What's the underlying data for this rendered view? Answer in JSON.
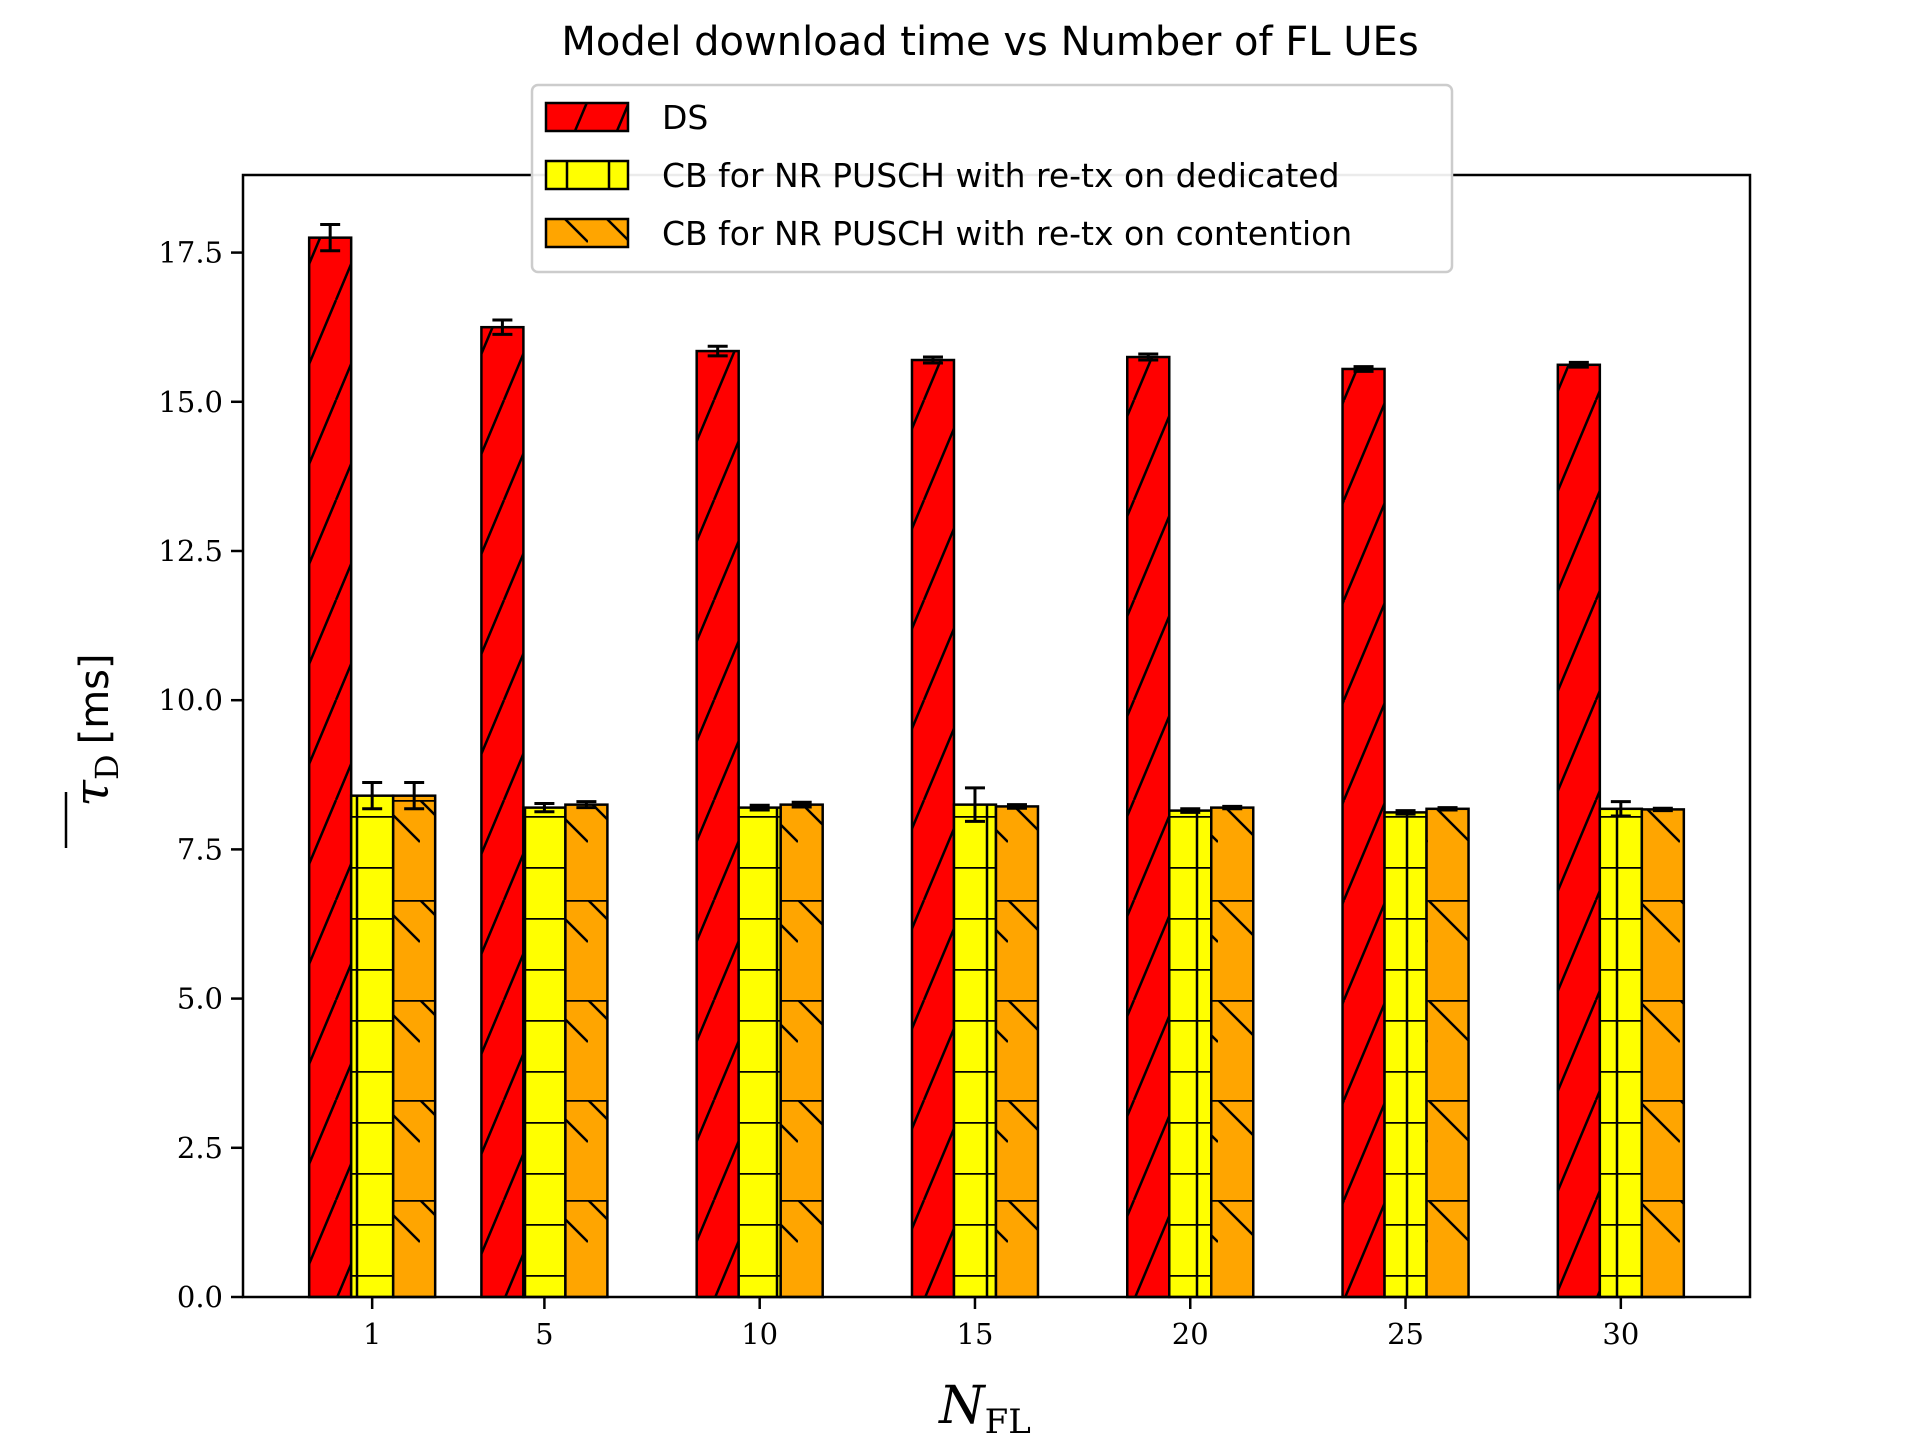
{
  "chart_data": {
    "type": "bar",
    "title": "Model download time vs Number of FL UEs",
    "xlabel": {
      "main": "N",
      "subscript": "FL"
    },
    "ylabel": {
      "symbol": "τ",
      "subscript": "D",
      "unit": "[ms]"
    },
    "categories": [
      "1",
      "5",
      "10",
      "15",
      "20",
      "25",
      "30"
    ],
    "x_positions": [
      1,
      5,
      10,
      15,
      20,
      25,
      30
    ],
    "xlim": [
      -2,
      33
    ],
    "ylim": [
      0,
      18.8
    ],
    "yticks": [
      "0.0",
      "2.5",
      "5.0",
      "7.5",
      "10.0",
      "12.5",
      "15.0",
      "17.5"
    ],
    "ytick_values": [
      0,
      2.5,
      5.0,
      7.5,
      10.0,
      12.5,
      15.0,
      17.5
    ],
    "legend_position": "upper-center",
    "grid": false,
    "series": [
      {
        "name": "DS",
        "color": "#ff0000",
        "hatch": "diagonal",
        "values": [
          17.75,
          16.25,
          15.85,
          15.7,
          15.75,
          15.55,
          15.62
        ],
        "errors": [
          0.22,
          0.12,
          0.08,
          0.05,
          0.05,
          0.04,
          0.04
        ]
      },
      {
        "name": "CB for NR PUSCH with re-tx on dedicated",
        "color": "#ffff00",
        "hatch": "grid",
        "values": [
          8.4,
          8.2,
          8.2,
          8.25,
          8.15,
          8.12,
          8.18
        ],
        "errors": [
          0.22,
          0.07,
          0.04,
          0.28,
          0.03,
          0.03,
          0.12
        ]
      },
      {
        "name": "CB for NR PUSCH with re-tx on contention",
        "color": "#ffa500",
        "hatch": "back-diagonal",
        "values": [
          8.4,
          8.25,
          8.25,
          8.22,
          8.2,
          8.18,
          8.17
        ],
        "errors": [
          0.22,
          0.05,
          0.04,
          0.03,
          0.02,
          0.02,
          0.02
        ]
      }
    ]
  }
}
